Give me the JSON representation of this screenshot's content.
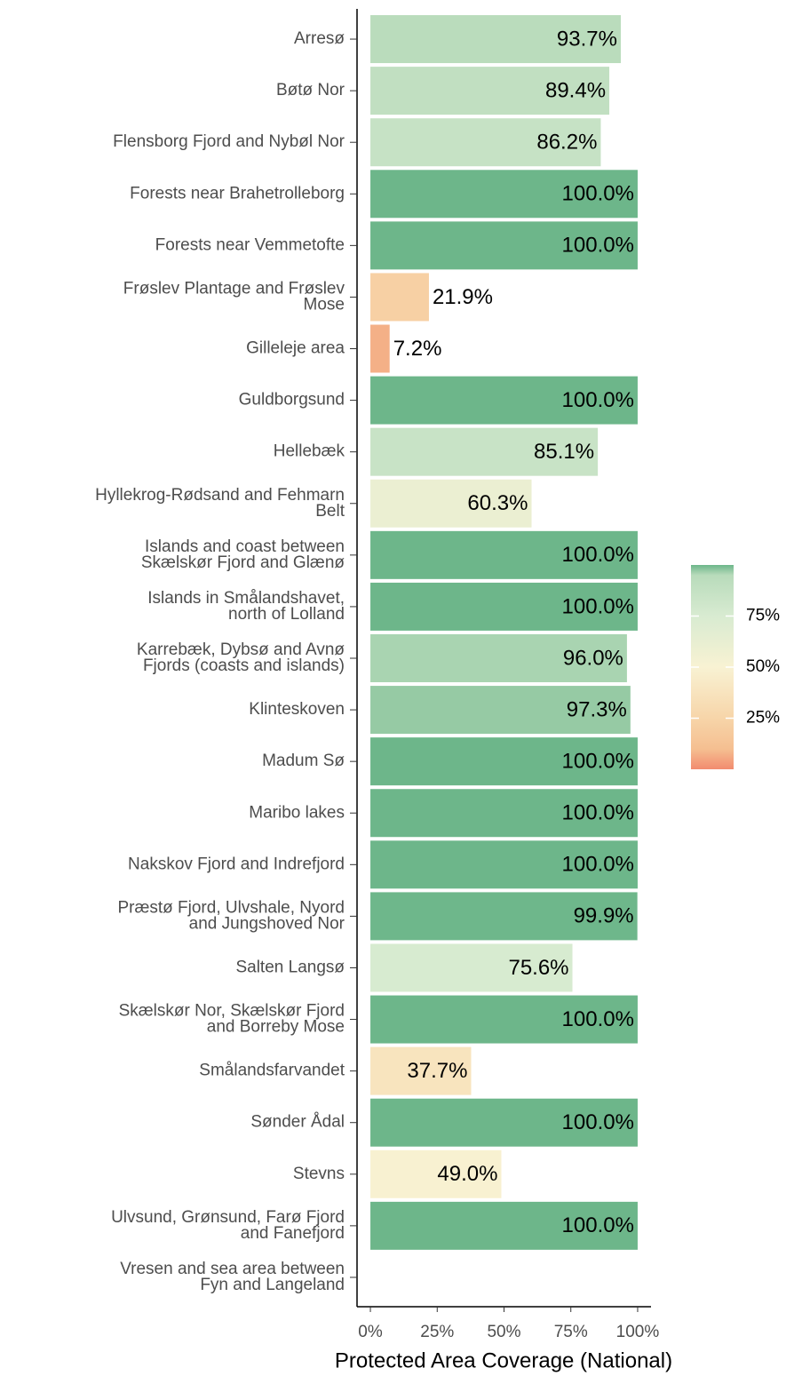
{
  "chart_data": {
    "type": "bar",
    "orientation": "horizontal",
    "x_label": "Protected Area Coverage (National)",
    "categories": [
      "Arresø",
      "Bøtø Nor",
      "Flensborg Fjord and Nybøl Nor",
      "Forests near Brahetrolleborg",
      "Forests near Vemmetofte",
      "Frøslev Plantage and Frøslev\nMose",
      "Gilleleje area",
      "Guldborgsund",
      "Hellebæk",
      "Hyllekrog-Rødsand and Fehmarn\nBelt",
      "Islands and coast between\nSkælskør Fjord and Glænø",
      "Islands in Smålandshavet,\nnorth of Lolland",
      "Karrebæk, Dybsø and Avnø\nFjords (coasts and islands)",
      "Klinteskoven",
      "Madum Sø",
      "Maribo lakes",
      "Nakskov Fjord and Indrefjord",
      "Præstø Fjord, Ulvshale, Nyord\nand Jungshoved Nor",
      "Salten Langsø",
      "Skælskør Nor, Skælskør Fjord\nand Borreby Mose",
      "Smålandsfarvandet",
      "Sønder Ådal",
      "Stevns",
      "Ulvsund, Grønsund, Farø Fjord\nand Fanefjord",
      "Vresen and sea area between\nFyn and Langeland"
    ],
    "values": [
      93.7,
      89.4,
      86.2,
      100,
      100,
      21.9,
      7.2,
      100,
      85.1,
      60.3,
      100,
      100,
      96.0,
      97.3,
      100,
      100,
      100,
      99.9,
      75.6,
      100,
      37.7,
      100,
      49.0,
      100,
      null
    ],
    "value_labels": [
      "93.7%",
      "89.4%",
      "86.2%",
      "100.0%",
      "100.0%",
      "21.9%",
      "7.2%",
      "100.0%",
      "85.1%",
      "60.3%",
      "100.0%",
      "100.0%",
      "96.0%",
      "97.3%",
      "100.0%",
      "100.0%",
      "100.0%",
      "99.9%",
      "75.6%",
      "100.0%",
      "37.7%",
      "100.0%",
      "49.0%",
      "100.0%",
      null
    ],
    "xlim": [
      -5,
      105
    ],
    "xticks": [
      {
        "value": 0,
        "label": "0%"
      },
      {
        "value": 25,
        "label": "25%"
      },
      {
        "value": 50,
        "label": "50%"
      },
      {
        "value": 75,
        "label": "75%"
      },
      {
        "value": 100,
        "label": "100%"
      }
    ],
    "color_scale": [
      {
        "value": 0,
        "color": "#f28b6f"
      },
      {
        "value": 10,
        "color": "#f5bf91"
      },
      {
        "value": 25,
        "color": "#f7d5a9"
      },
      {
        "value": 50,
        "color": "#f8f2d3"
      },
      {
        "value": 75,
        "color": "#d8ebd1"
      },
      {
        "value": 95,
        "color": "#b8dbbb"
      },
      {
        "value": 100,
        "color": "#6db68a"
      }
    ],
    "legend": {
      "lim": [
        0,
        100
      ],
      "ticks": [
        {
          "value": 25,
          "label": "25%"
        },
        {
          "value": 50,
          "label": "50%"
        },
        {
          "value": 75,
          "label": "75%"
        }
      ]
    }
  }
}
